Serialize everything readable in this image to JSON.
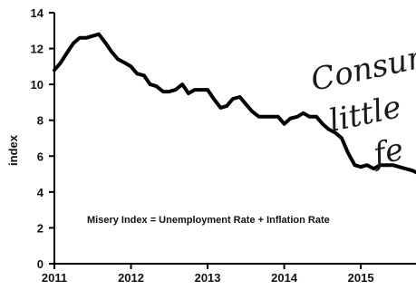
{
  "chart_data": {
    "type": "line",
    "xlabel": "",
    "ylabel": "index",
    "ylim": [
      0,
      14
    ],
    "xlim": [
      2011,
      2015.72
    ],
    "y_ticks": [
      "0",
      "2",
      "4",
      "6",
      "8",
      "10",
      "12",
      "14"
    ],
    "x_ticks": [
      "2011",
      "2012",
      "2013",
      "2014",
      "2015"
    ],
    "grid": false,
    "annotation": "Misery Index = Unemployment Rate + Inflation Rate",
    "handwritten_text": [
      "Consum",
      "little",
      "fe"
    ],
    "line_color": "#000000",
    "series": [
      {
        "x": [
          2011.0,
          2011.08,
          2011.17,
          2011.25,
          2011.33,
          2011.42,
          2011.5,
          2011.58,
          2011.67,
          2011.75,
          2011.83,
          2011.92,
          2012.0,
          2012.08,
          2012.17,
          2012.25,
          2012.33,
          2012.42,
          2012.5,
          2012.58,
          2012.67,
          2012.75,
          2012.83,
          2012.92,
          2013.0,
          2013.08,
          2013.17,
          2013.25,
          2013.33,
          2013.42,
          2013.5,
          2013.58,
          2013.67,
          2013.75,
          2013.83,
          2013.92,
          2014.0,
          2014.08,
          2014.17,
          2014.25,
          2014.33,
          2014.42,
          2014.5,
          2014.58,
          2014.67,
          2014.75,
          2014.83,
          2014.92,
          2015.0,
          2015.08,
          2015.17,
          2015.25,
          2015.33,
          2015.42,
          2015.5,
          2015.58,
          2015.67,
          2015.72
        ],
        "values": [
          10.8,
          11.2,
          11.8,
          12.3,
          12.6,
          12.6,
          12.7,
          12.8,
          12.3,
          11.8,
          11.4,
          11.2,
          11.0,
          10.6,
          10.5,
          10.0,
          9.9,
          9.6,
          9.6,
          9.7,
          10.0,
          9.5,
          9.7,
          9.7,
          9.7,
          9.2,
          8.7,
          8.8,
          9.2,
          9.3,
          8.9,
          8.5,
          8.2,
          8.2,
          8.2,
          8.2,
          7.8,
          8.1,
          8.2,
          8.4,
          8.2,
          8.2,
          7.8,
          7.5,
          7.3,
          7.0,
          6.2,
          5.5,
          5.4,
          5.5,
          5.3,
          5.5,
          5.5,
          5.5,
          5.4,
          5.3,
          5.2,
          5.1
        ]
      }
    ]
  }
}
